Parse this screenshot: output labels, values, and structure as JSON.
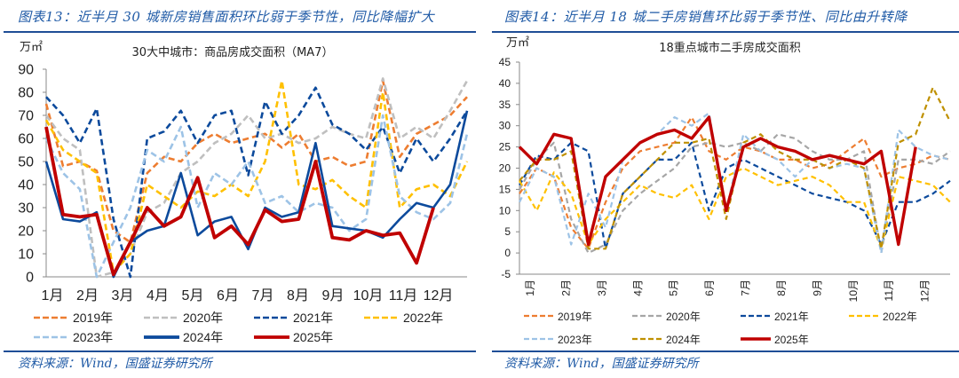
{
  "left": {
    "fig_title": "图表13：近半月 30 城新房销售面积环比弱于季节性，同比降幅扩大",
    "source": "资料来源：Wind，国盛证券研究所",
    "unit": "万㎡"
  },
  "right": {
    "fig_title": "图表14：近半月 18 城二手房销售环比弱于季节性、同比由升转降",
    "source": "资料来源：Wind，国盛证券研究所",
    "unit": "万㎡"
  },
  "chart_data": [
    {
      "type": "line",
      "title": "30大中城市：商品房成交面积（MA7）",
      "ylabel": "万㎡",
      "xlabel": "",
      "ylim": [
        0,
        90
      ],
      "yticks": [
        0,
        10,
        20,
        30,
        40,
        50,
        60,
        70,
        80,
        90
      ],
      "xticks": [
        "1月",
        "2月",
        "3月",
        "4月",
        "5月",
        "6月",
        "7月",
        "8月",
        "9月",
        "10月",
        "11月",
        "12月"
      ],
      "x_points_per_year": 24,
      "grid": false,
      "legend": "bottom",
      "series": [
        {
          "name": "2019年",
          "color": "#ed7d31",
          "dash": true,
          "values": [
            75,
            48,
            50,
            46,
            20,
            15,
            45,
            52,
            50,
            58,
            62,
            58,
            60,
            62,
            56,
            62,
            50,
            52,
            48,
            50,
            85,
            52,
            62,
            66,
            70,
            78
          ]
        },
        {
          "name": "2020年",
          "color": "#bfbfbf",
          "dash": true,
          "values": [
            70,
            60,
            55,
            0,
            2,
            10,
            28,
            32,
            45,
            50,
            58,
            62,
            70,
            60,
            62,
            58,
            60,
            65,
            62,
            60,
            86,
            60,
            65,
            60,
            72,
            85
          ]
        },
        {
          "name": "2021年",
          "color": "#0c4a9c",
          "dash": true,
          "values": [
            78,
            70,
            58,
            73,
            25,
            0,
            60,
            63,
            72,
            58,
            70,
            72,
            44,
            76,
            62,
            70,
            82,
            66,
            62,
            55,
            65,
            45,
            60,
            50,
            60,
            72
          ]
        },
        {
          "name": "2022年",
          "color": "#ffc000",
          "dash": true,
          "values": [
            68,
            55,
            50,
            45,
            2,
            10,
            40,
            35,
            30,
            37,
            35,
            40,
            35,
            50,
            85,
            40,
            38,
            42,
            35,
            30,
            80,
            30,
            38,
            40,
            35,
            50
          ]
        },
        {
          "name": "2023年",
          "color": "#9dc3e6",
          "dash": true,
          "values": [
            60,
            45,
            38,
            0,
            15,
            30,
            55,
            50,
            65,
            30,
            45,
            40,
            50,
            32,
            35,
            28,
            32,
            30,
            20,
            25,
            70,
            35,
            28,
            25,
            32,
            62
          ]
        },
        {
          "name": "2024年",
          "color": "#0c4a9c",
          "dash": false,
          "values": [
            50,
            25,
            24,
            28,
            0,
            15,
            20,
            22,
            45,
            18,
            24,
            26,
            12,
            30,
            26,
            28,
            58,
            22,
            21,
            20,
            17,
            25,
            32,
            30,
            40,
            72
          ]
        },
        {
          "name": "2025年",
          "color": "#c00000",
          "dash": false,
          "values": [
            65,
            27,
            26,
            27,
            1,
            15,
            30,
            22,
            26,
            43,
            17,
            22,
            14,
            29,
            24,
            25,
            50,
            17,
            16,
            20,
            18,
            19,
            6,
            30
          ]
        }
      ]
    },
    {
      "type": "line",
      "title": "18重点城市二手房成交面积",
      "ylabel": "万㎡",
      "xlabel": "",
      "ylim": [
        -5,
        45
      ],
      "yticks": [
        -5,
        0,
        5,
        10,
        15,
        20,
        25,
        30,
        35,
        40,
        45
      ],
      "xticks": [
        "1月",
        "2月",
        "3月",
        "4月",
        "5月",
        "6月",
        "7月",
        "8月",
        "9月",
        "10月",
        "11月",
        "12月"
      ],
      "x_points_per_year": 24,
      "grid": false,
      "legend": "bottom",
      "series": [
        {
          "name": "2019年",
          "color": "#ed7d31",
          "dash": true,
          "values": [
            14,
            20,
            18,
            6,
            1,
            12,
            20,
            24,
            25,
            26,
            32,
            24,
            22,
            25,
            24,
            22,
            22,
            20,
            21,
            24,
            27,
            18,
            20,
            21,
            23,
            22
          ]
        },
        {
          "name": "2020年",
          "color": "#a6a6a6",
          "dash": true,
          "values": [
            15,
            22,
            26,
            8,
            0,
            2,
            10,
            14,
            17,
            20,
            25,
            26,
            25,
            26,
            24,
            28,
            27,
            24,
            22,
            22,
            24,
            0,
            22,
            22,
            21,
            24
          ]
        },
        {
          "name": "2021年",
          "color": "#0c4a9c",
          "dash": true,
          "values": [
            16,
            23,
            22,
            26,
            24,
            1,
            14,
            18,
            22,
            22,
            26,
            10,
            20,
            22,
            20,
            18,
            16,
            14,
            13,
            12,
            10,
            2,
            12,
            12,
            14,
            17
          ]
        },
        {
          "name": "2022年",
          "color": "#ffc000",
          "dash": true,
          "values": [
            17,
            10,
            19,
            14,
            2,
            8,
            12,
            16,
            14,
            13,
            16,
            8,
            18,
            20,
            18,
            16,
            17,
            18,
            16,
            12,
            12,
            1,
            18,
            17,
            16,
            12
          ]
        },
        {
          "name": "2023年",
          "color": "#9dc3e6",
          "dash": true,
          "values": [
            12,
            20,
            18,
            2,
            14,
            6,
            22,
            26,
            28,
            32,
            30,
            33,
            10,
            28,
            24,
            22,
            18,
            22,
            20,
            21,
            20,
            0,
            29,
            25,
            23,
            22
          ]
        },
        {
          "name": "2024年",
          "color": "#bf9000",
          "dash": true,
          "values": [
            17,
            22,
            22,
            24,
            1,
            1,
            14,
            18,
            22,
            26,
            26,
            27,
            8,
            26,
            28,
            24,
            22,
            22,
            20,
            22,
            20,
            1,
            26,
            28,
            39,
            31
          ]
        },
        {
          "name": "2025年",
          "color": "#c00000",
          "dash": false,
          "values": [
            25,
            21,
            28,
            27,
            2,
            18,
            22,
            26,
            28,
            29,
            27,
            32,
            10,
            25,
            27,
            25,
            24,
            22,
            23,
            22,
            21,
            24,
            2,
            25
          ]
        }
      ]
    }
  ]
}
